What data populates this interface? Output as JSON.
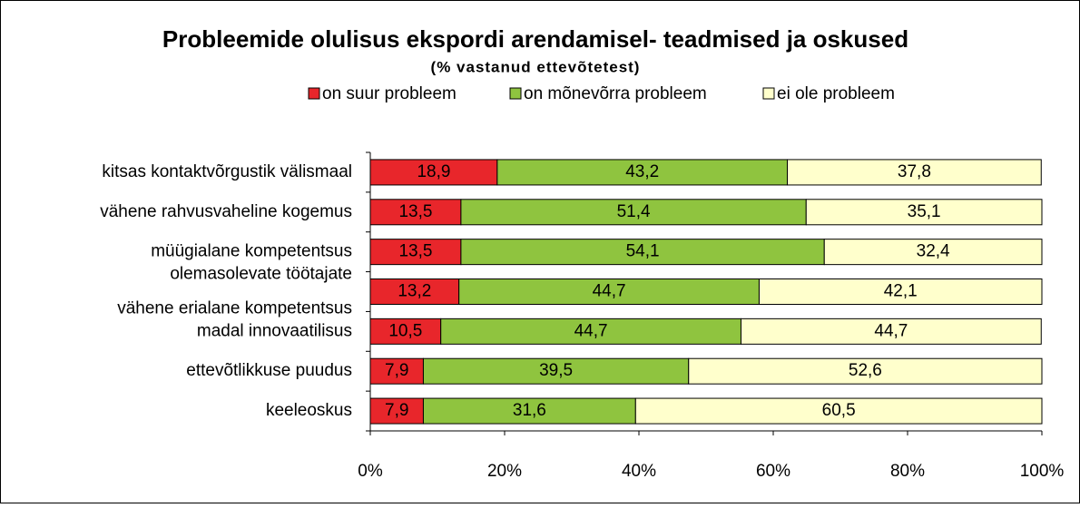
{
  "chart_data": {
    "type": "stacked-barh",
    "title": "Probleemide olulisus ekspordi arendamisel- teadmised ja oskused",
    "subtitle": "(% vastanud ettevõtetest)",
    "categories": [
      "kitsas kontaktvõrgustik välismaal",
      "vähene rahvusvaheline kogemus",
      "müügialane kompetentsus",
      [
        "olemasolevate töötajate",
        "vähene erialane kompetentsus"
      ],
      "madal innovaatilisus",
      "ettevõtlikkuse puudus",
      "keeleoskus"
    ],
    "series": [
      {
        "name": "on suur probleem",
        "color": "#e8262b",
        "values": [
          18.9,
          13.5,
          13.5,
          13.2,
          10.5,
          7.9,
          7.9
        ],
        "value_labels": [
          "18,9",
          "13,5",
          "13,5",
          "13,2",
          "10,5",
          "7,9",
          "7,9"
        ]
      },
      {
        "name": "on mõnevõrra probleem",
        "color": "#8fc43f",
        "values": [
          43.2,
          51.4,
          54.1,
          44.7,
          44.7,
          39.5,
          31.6
        ],
        "value_labels": [
          "43,2",
          "51,4",
          "54,1",
          "44,7",
          "44,7",
          "39,5",
          "31,6"
        ]
      },
      {
        "name": "ei ole probleem",
        "color": "#ffffcc",
        "values": [
          37.8,
          35.1,
          32.4,
          42.1,
          44.7,
          52.6,
          60.5
        ],
        "value_labels": [
          "37,8",
          "35,1",
          "32,4",
          "42,1",
          "44,7",
          "52,6",
          "60,5"
        ]
      }
    ],
    "xlim": [
      0,
      100
    ],
    "xticks": [
      {
        "value": 0,
        "label": "0%"
      },
      {
        "value": 20,
        "label": "20%"
      },
      {
        "value": 40,
        "label": "40%"
      },
      {
        "value": 60,
        "label": "60%"
      },
      {
        "value": 80,
        "label": "80%"
      },
      {
        "value": 100,
        "label": "100%"
      }
    ]
  }
}
